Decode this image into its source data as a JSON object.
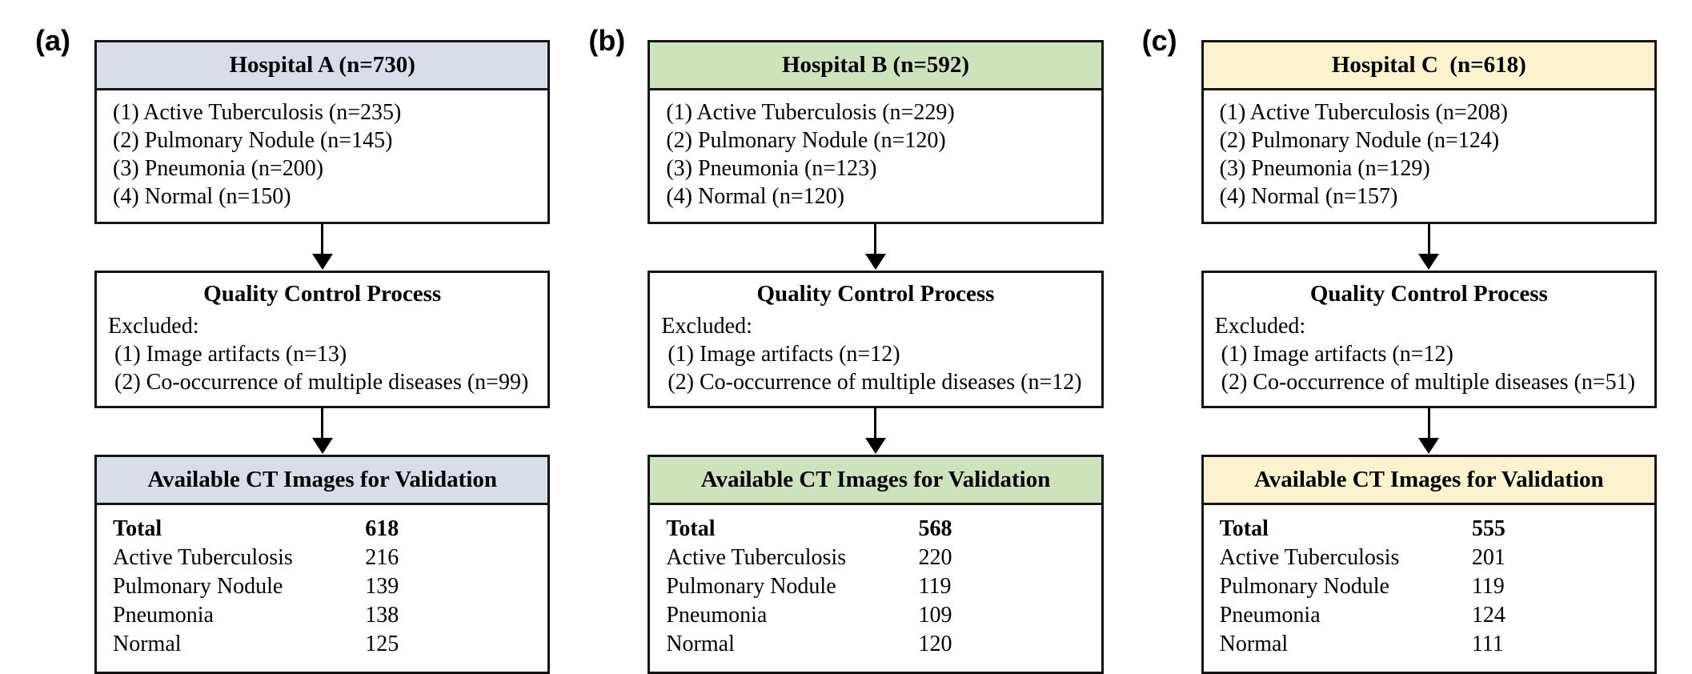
{
  "panels": [
    {
      "label": "(a)",
      "accent": "#D8DDE8",
      "source": {
        "title": "Hospital A (n=730)",
        "items": [
          "(1) Active Tuberculosis (n=235)",
          "(2) Pulmonary Nodule (n=145)",
          "(3) Pneumonia (n=200)",
          "(4) Normal (n=150)"
        ]
      },
      "quality_control": {
        "title": "Quality Control Process",
        "intro": "Excluded:",
        "items": [
          "(1) Image artifacts (n=13)",
          "(2) Co-occurrence of multiple diseases (n=99)"
        ]
      },
      "validation": {
        "title": "Available CT Images for Validation",
        "rows": [
          {
            "label": "Total",
            "value": "618"
          },
          {
            "label": "Active Tuberculosis",
            "value": "216"
          },
          {
            "label": "Pulmonary Nodule",
            "value": "139"
          },
          {
            "label": "Pneumonia",
            "value": "138"
          },
          {
            "label": "Normal",
            "value": "125"
          }
        ]
      }
    },
    {
      "label": "(b)",
      "accent": "#CCE3BC",
      "source": {
        "title": "Hospital B (n=592)",
        "items": [
          "(1) Active Tuberculosis (n=229)",
          "(2) Pulmonary Nodule (n=120)",
          "(3) Pneumonia (n=123)",
          "(4) Normal (n=120)"
        ]
      },
      "quality_control": {
        "title": "Quality Control Process",
        "intro": "Excluded:",
        "items": [
          "(1) Image artifacts (n=12)",
          "(2) Co-occurrence of multiple diseases (n=12)"
        ]
      },
      "validation": {
        "title": "Available CT Images for Validation",
        "rows": [
          {
            "label": "Total",
            "value": "568"
          },
          {
            "label": "Active Tuberculosis",
            "value": "220"
          },
          {
            "label": "Pulmonary Nodule",
            "value": "119"
          },
          {
            "label": "Pneumonia",
            "value": "109"
          },
          {
            "label": "Normal",
            "value": "120"
          }
        ]
      }
    },
    {
      "label": "(c)",
      "accent": "#FCF2CE",
      "source": {
        "title": "Hospital C  (n=618)",
        "items": [
          "(1) Active Tuberculosis (n=208)",
          "(2) Pulmonary Nodule (n=124)",
          "(3) Pneumonia (n=129)",
          "(4) Normal (n=157)"
        ]
      },
      "quality_control": {
        "title": "Quality Control Process",
        "intro": "Excluded:",
        "items": [
          "(1) Image artifacts (n=12)",
          "(2) Co-occurrence of multiple diseases (n=51)"
        ]
      },
      "validation": {
        "title": "Available CT Images for Validation",
        "rows": [
          {
            "label": "Total",
            "value": "555"
          },
          {
            "label": "Active Tuberculosis",
            "value": "201"
          },
          {
            "label": "Pulmonary Nodule",
            "value": "119"
          },
          {
            "label": "Pneumonia",
            "value": "124"
          },
          {
            "label": "Normal",
            "value": "111"
          }
        ]
      }
    }
  ]
}
